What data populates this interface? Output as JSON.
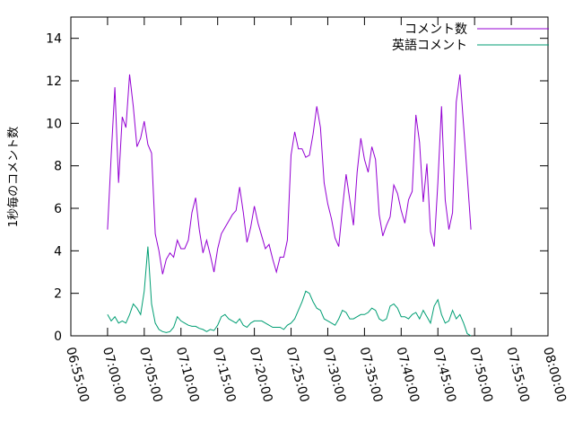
{
  "chart_data": {
    "type": "line",
    "title": "",
    "ylabel": "1秒毎のコメント数",
    "xlabel": "",
    "ylim": [
      0,
      15
    ],
    "yticks": [
      0,
      2,
      4,
      6,
      8,
      10,
      12,
      14
    ],
    "xlim": [
      "06:55:00",
      "08:00:00"
    ],
    "xticks": [
      "06:55:00",
      "07:00:00",
      "07:05:00",
      "07:10:00",
      "07:15:00",
      "07:20:00",
      "07:25:00",
      "07:30:00",
      "07:35:00",
      "07:40:00",
      "07:45:00",
      "07:50:00",
      "07:55:00",
      "08:00:00"
    ],
    "grid": false,
    "legend_position": "top-right",
    "x_start": "07:00:00",
    "x_step_seconds": 30,
    "series": [
      {
        "name": "コメント数",
        "color": "#9400d3",
        "values": [
          5.0,
          8.5,
          11.7,
          7.2,
          10.3,
          9.8,
          12.3,
          10.8,
          8.9,
          9.3,
          10.1,
          9.0,
          8.6,
          4.8,
          4.0,
          2.9,
          3.6,
          3.9,
          3.7,
          4.5,
          4.1,
          4.1,
          4.5,
          5.8,
          6.5,
          5.0,
          3.9,
          4.5,
          3.8,
          3.0,
          4.1,
          4.8,
          5.1,
          5.4,
          5.7,
          5.9,
          7.0,
          5.8,
          4.4,
          5.1,
          6.1,
          5.3,
          4.7,
          4.1,
          4.3,
          3.6,
          3.0,
          3.7,
          3.7,
          4.5,
          8.5,
          9.6,
          8.8,
          8.8,
          8.4,
          8.5,
          9.5,
          10.8,
          9.8,
          7.2,
          6.2,
          5.5,
          4.6,
          4.2,
          6.0,
          7.6,
          6.4,
          5.2,
          7.7,
          9.3,
          8.3,
          7.7,
          8.9,
          8.3,
          5.7,
          4.7,
          5.2,
          5.6,
          7.1,
          6.7,
          5.9,
          5.3,
          6.4,
          6.8,
          10.4,
          9.1,
          6.3,
          8.1,
          4.9,
          4.2,
          7.2,
          10.8,
          6.4,
          5.0,
          5.8,
          11.0,
          12.3,
          9.9,
          7.5,
          5.0
        ]
      },
      {
        "name": "英語コメント",
        "color": "#009e73",
        "values": [
          1.0,
          0.7,
          0.9,
          0.6,
          0.7,
          0.6,
          1.0,
          1.5,
          1.3,
          1.0,
          2.1,
          4.2,
          1.5,
          0.6,
          0.3,
          0.2,
          0.15,
          0.2,
          0.4,
          0.9,
          0.7,
          0.6,
          0.5,
          0.45,
          0.45,
          0.35,
          0.3,
          0.2,
          0.3,
          0.25,
          0.5,
          0.9,
          1.0,
          0.8,
          0.7,
          0.6,
          0.8,
          0.5,
          0.4,
          0.6,
          0.7,
          0.7,
          0.7,
          0.6,
          0.5,
          0.4,
          0.4,
          0.4,
          0.3,
          0.5,
          0.6,
          0.8,
          1.2,
          1.6,
          2.1,
          2.0,
          1.6,
          1.3,
          1.2,
          0.8,
          0.7,
          0.6,
          0.5,
          0.8,
          1.2,
          1.1,
          0.8,
          0.8,
          0.9,
          1.0,
          1.0,
          1.1,
          1.3,
          1.2,
          0.8,
          0.7,
          0.8,
          1.4,
          1.5,
          1.3,
          0.9,
          0.9,
          0.8,
          1.0,
          1.1,
          0.8,
          1.2,
          0.9,
          0.6,
          1.4,
          1.7,
          1.0,
          0.6,
          0.7,
          1.2,
          0.8,
          1.0,
          0.6,
          0.1,
          0.0
        ]
      }
    ]
  }
}
